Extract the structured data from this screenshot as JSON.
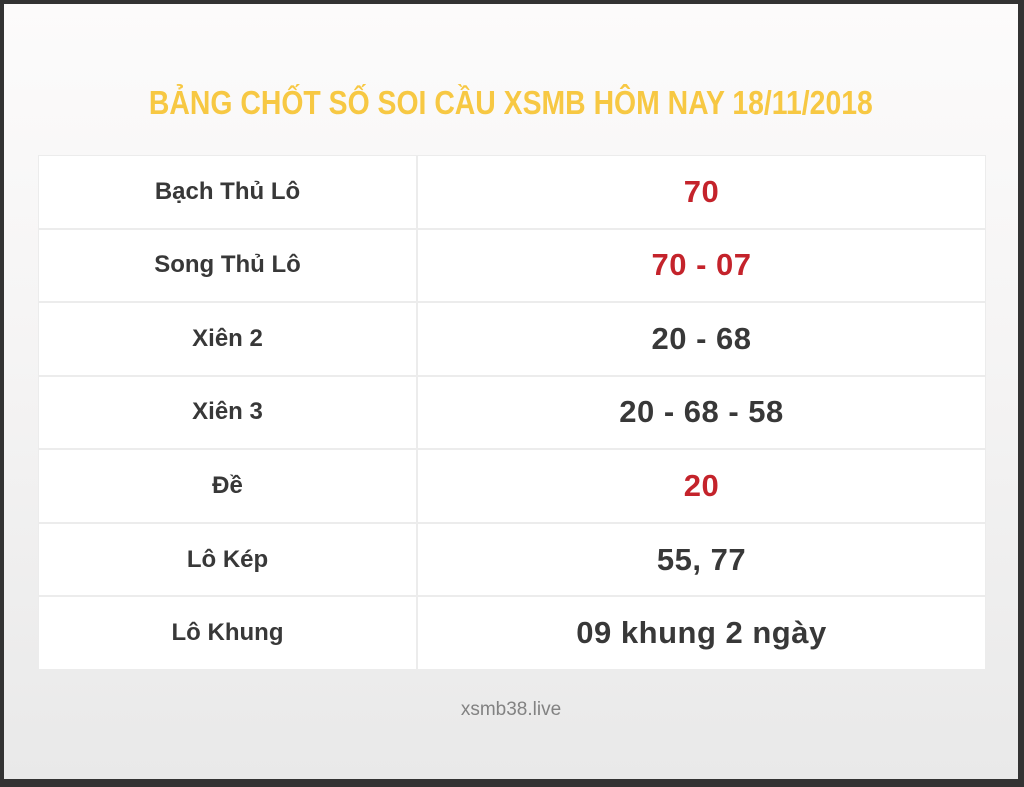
{
  "header": {
    "title": "BẢNG CHỐT SỐ SOI CẦU XSMB HÔM NAY 18/11/2018"
  },
  "table": {
    "rows": [
      {
        "label": "Bạch Thủ Lô",
        "value": "70",
        "highlight": true
      },
      {
        "label": "Song Thủ Lô",
        "value": "70 - 07",
        "highlight": true
      },
      {
        "label": "Xiên 2",
        "value": "20 - 68",
        "highlight": false
      },
      {
        "label": "Xiên 3",
        "value": "20 - 68 - 58",
        "highlight": false
      },
      {
        "label": "Đề",
        "value": "20",
        "highlight": true
      },
      {
        "label": "Lô Kép",
        "value": "55, 77",
        "highlight": false
      },
      {
        "label": "Lô Khung",
        "value": "09 khung 2 ngày",
        "highlight": false
      }
    ]
  },
  "footer": {
    "site": "xsmb38.live"
  },
  "colors": {
    "title": "#f7c843",
    "highlight_value": "#c4232b",
    "text_dark": "#383838",
    "footer_text": "#828282",
    "table_border": "#ececec",
    "frame_border": "#333333",
    "bg_top": "#fcfbfb",
    "bg_bottom": "#e9e9e9"
  }
}
